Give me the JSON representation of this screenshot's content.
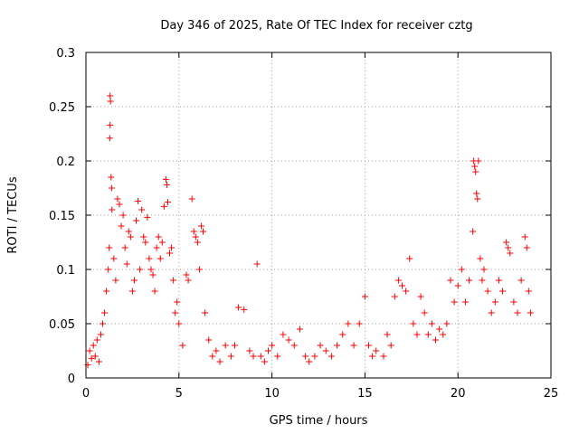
{
  "chart_data": {
    "type": "scatter",
    "title": "Day 346 of 2025, Rate Of TEC Index for receiver cztg",
    "xlabel": "GPS time / hours",
    "ylabel": "ROTI / TECUs",
    "xlim": [
      0,
      25
    ],
    "ylim": [
      0,
      0.3
    ],
    "x_ticks": [
      "0",
      "5",
      "10",
      "15",
      "20",
      "25"
    ],
    "y_ticks": [
      "0",
      "0.05",
      "0.1",
      "0.15",
      "0.2",
      "0.25",
      "0.3"
    ],
    "x_tick_values": [
      0,
      5,
      10,
      15,
      20,
      25
    ],
    "y_tick_values": [
      0,
      0.05,
      0.1,
      0.15,
      0.2,
      0.25,
      0.3
    ],
    "grid": true,
    "marker": "plus",
    "color": "#ff0000",
    "series": [
      {
        "points": [
          [
            0.1,
            0.012
          ],
          [
            0.2,
            0.025
          ],
          [
            0.3,
            0.018
          ],
          [
            0.4,
            0.03
          ],
          [
            0.5,
            0.02
          ],
          [
            0.6,
            0.035
          ],
          [
            0.7,
            0.015
          ],
          [
            0.8,
            0.04
          ],
          [
            0.9,
            0.05
          ],
          [
            1.0,
            0.06
          ],
          [
            1.1,
            0.08
          ],
          [
            1.2,
            0.1
          ],
          [
            1.25,
            0.12
          ],
          [
            1.3,
            0.26
          ],
          [
            1.32,
            0.255
          ],
          [
            1.3,
            0.233
          ],
          [
            1.28,
            0.221
          ],
          [
            1.35,
            0.185
          ],
          [
            1.38,
            0.175
          ],
          [
            1.4,
            0.155
          ],
          [
            1.5,
            0.11
          ],
          [
            1.6,
            0.09
          ],
          [
            1.7,
            0.165
          ],
          [
            1.8,
            0.16
          ],
          [
            1.9,
            0.14
          ],
          [
            2.0,
            0.15
          ],
          [
            2.1,
            0.12
          ],
          [
            2.2,
            0.105
          ],
          [
            2.3,
            0.135
          ],
          [
            2.4,
            0.13
          ],
          [
            2.5,
            0.08
          ],
          [
            2.6,
            0.09
          ],
          [
            2.7,
            0.145
          ],
          [
            2.8,
            0.163
          ],
          [
            2.9,
            0.1
          ],
          [
            3.0,
            0.155
          ],
          [
            3.1,
            0.13
          ],
          [
            3.2,
            0.125
          ],
          [
            3.3,
            0.148
          ],
          [
            3.4,
            0.11
          ],
          [
            3.5,
            0.1
          ],
          [
            3.6,
            0.095
          ],
          [
            3.7,
            0.08
          ],
          [
            3.8,
            0.12
          ],
          [
            3.9,
            0.13
          ],
          [
            4.0,
            0.11
          ],
          [
            4.1,
            0.125
          ],
          [
            4.2,
            0.158
          ],
          [
            4.3,
            0.183
          ],
          [
            4.35,
            0.178
          ],
          [
            4.4,
            0.162
          ],
          [
            4.5,
            0.115
          ],
          [
            4.6,
            0.12
          ],
          [
            4.7,
            0.09
          ],
          [
            4.8,
            0.06
          ],
          [
            4.9,
            0.07
          ],
          [
            5.0,
            0.05
          ],
          [
            5.2,
            0.03
          ],
          [
            5.4,
            0.095
          ],
          [
            5.5,
            0.09
          ],
          [
            5.7,
            0.165
          ],
          [
            5.8,
            0.135
          ],
          [
            5.9,
            0.13
          ],
          [
            6.0,
            0.125
          ],
          [
            6.1,
            0.1
          ],
          [
            6.2,
            0.14
          ],
          [
            6.3,
            0.135
          ],
          [
            6.4,
            0.06
          ],
          [
            6.6,
            0.035
          ],
          [
            6.8,
            0.02
          ],
          [
            7.0,
            0.025
          ],
          [
            7.2,
            0.015
          ],
          [
            7.5,
            0.03
          ],
          [
            7.8,
            0.02
          ],
          [
            8.0,
            0.03
          ],
          [
            8.2,
            0.065
          ],
          [
            8.5,
            0.063
          ],
          [
            8.8,
            0.025
          ],
          [
            9.0,
            0.02
          ],
          [
            9.2,
            0.105
          ],
          [
            9.4,
            0.02
          ],
          [
            9.6,
            0.015
          ],
          [
            9.8,
            0.025
          ],
          [
            10.0,
            0.03
          ],
          [
            10.3,
            0.02
          ],
          [
            10.6,
            0.04
          ],
          [
            10.9,
            0.035
          ],
          [
            11.2,
            0.03
          ],
          [
            11.5,
            0.045
          ],
          [
            11.8,
            0.02
          ],
          [
            12.0,
            0.015
          ],
          [
            12.3,
            0.02
          ],
          [
            12.6,
            0.03
          ],
          [
            12.9,
            0.025
          ],
          [
            13.2,
            0.02
          ],
          [
            13.5,
            0.03
          ],
          [
            13.8,
            0.04
          ],
          [
            14.1,
            0.05
          ],
          [
            14.4,
            0.03
          ],
          [
            14.7,
            0.05
          ],
          [
            15.0,
            0.075
          ],
          [
            15.2,
            0.03
          ],
          [
            15.4,
            0.02
          ],
          [
            15.6,
            0.025
          ],
          [
            16.0,
            0.02
          ],
          [
            16.2,
            0.04
          ],
          [
            16.4,
            0.03
          ],
          [
            16.6,
            0.075
          ],
          [
            16.8,
            0.09
          ],
          [
            17.0,
            0.085
          ],
          [
            17.2,
            0.08
          ],
          [
            17.4,
            0.11
          ],
          [
            17.6,
            0.05
          ],
          [
            17.8,
            0.04
          ],
          [
            18.0,
            0.075
          ],
          [
            18.2,
            0.06
          ],
          [
            18.4,
            0.04
          ],
          [
            18.6,
            0.05
          ],
          [
            18.8,
            0.035
          ],
          [
            19.0,
            0.045
          ],
          [
            19.2,
            0.04
          ],
          [
            19.4,
            0.05
          ],
          [
            19.6,
            0.09
          ],
          [
            19.8,
            0.07
          ],
          [
            20.0,
            0.085
          ],
          [
            20.2,
            0.1
          ],
          [
            20.4,
            0.07
          ],
          [
            20.6,
            0.09
          ],
          [
            20.8,
            0.135
          ],
          [
            20.85,
            0.2
          ],
          [
            20.9,
            0.195
          ],
          [
            20.95,
            0.19
          ],
          [
            21.0,
            0.17
          ],
          [
            21.05,
            0.165
          ],
          [
            21.1,
            0.2
          ],
          [
            21.2,
            0.11
          ],
          [
            21.3,
            0.09
          ],
          [
            21.4,
            0.1
          ],
          [
            21.6,
            0.08
          ],
          [
            21.8,
            0.06
          ],
          [
            22.0,
            0.07
          ],
          [
            22.2,
            0.09
          ],
          [
            22.4,
            0.08
          ],
          [
            22.6,
            0.125
          ],
          [
            22.7,
            0.12
          ],
          [
            22.8,
            0.115
          ],
          [
            23.0,
            0.07
          ],
          [
            23.2,
            0.06
          ],
          [
            23.4,
            0.09
          ],
          [
            23.6,
            0.13
          ],
          [
            23.7,
            0.12
          ],
          [
            23.8,
            0.08
          ],
          [
            23.9,
            0.06
          ]
        ]
      }
    ]
  }
}
